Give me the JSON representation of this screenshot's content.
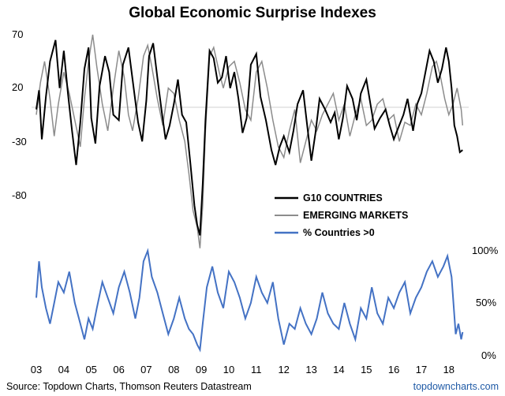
{
  "chart_data": {
    "type": "line",
    "title": "Global Economic Surprise Indexes",
    "top_panel": {
      "y_ticks": [
        70,
        20,
        -30,
        -80
      ],
      "ylim": [
        -125,
        78
      ],
      "reference_line": 0,
      "series": [
        {
          "name": "G10 COUNTRIES",
          "color": "#000000",
          "x": [
            2003.0,
            2003.1,
            2003.2,
            2003.35,
            2003.5,
            2003.7,
            2003.85,
            2004.0,
            2004.15,
            2004.3,
            2004.45,
            2004.6,
            2004.75,
            2004.9,
            2005.0,
            2005.15,
            2005.3,
            2005.5,
            2005.65,
            2005.8,
            2006.0,
            2006.15,
            2006.35,
            2006.5,
            2006.7,
            2006.85,
            2007.0,
            2007.1,
            2007.25,
            2007.4,
            2007.55,
            2007.7,
            2007.85,
            2008.0,
            2008.15,
            2008.3,
            2008.45,
            2008.6,
            2008.75,
            2008.85,
            2008.95,
            2009.05,
            2009.15,
            2009.3,
            2009.45,
            2009.6,
            2009.75,
            2009.9,
            2010.05,
            2010.2,
            2010.35,
            2010.5,
            2010.65,
            2010.8,
            2011.0,
            2011.15,
            2011.35,
            2011.55,
            2011.7,
            2011.85,
            2012.0,
            2012.2,
            2012.35,
            2012.5,
            2012.7,
            2012.85,
            2013.0,
            2013.15,
            2013.3,
            2013.5,
            2013.7,
            2013.85,
            2014.0,
            2014.15,
            2014.3,
            2014.5,
            2014.65,
            2014.8,
            2015.0,
            2015.15,
            2015.3,
            2015.5,
            2015.7,
            2015.85,
            2016.0,
            2016.15,
            2016.35,
            2016.5,
            2016.7,
            2016.85,
            2017.0,
            2017.15,
            2017.3,
            2017.45,
            2017.6,
            2017.75,
            2017.9,
            2018.0,
            2018.1,
            2018.2,
            2018.3,
            2018.4,
            2018.5
          ],
          "values": [
            0,
            18,
            -28,
            12,
            45,
            65,
            20,
            55,
            15,
            -20,
            -52,
            -12,
            38,
            58,
            -8,
            -32,
            22,
            50,
            35,
            -5,
            -10,
            42,
            58,
            28,
            -12,
            -30,
            8,
            50,
            62,
            30,
            0,
            -28,
            -15,
            5,
            28,
            -5,
            -12,
            -50,
            -90,
            -108,
            -118,
            -70,
            -10,
            55,
            48,
            25,
            30,
            50,
            20,
            35,
            10,
            -22,
            -8,
            42,
            52,
            12,
            -10,
            -38,
            -52,
            -35,
            -25,
            -40,
            -20,
            5,
            18,
            -15,
            -48,
            -22,
            10,
            0,
            -12,
            -3,
            -28,
            -8,
            22,
            10,
            -10,
            15,
            28,
            5,
            -18,
            -8,
            0,
            -15,
            -28,
            -18,
            -5,
            10,
            -20,
            5,
            15,
            35,
            55,
            45,
            25,
            38,
            58,
            45,
            20,
            -15,
            -25,
            -40,
            -38
          ]
        },
        {
          "name": "EMERGING MARKETS",
          "color": "#8c8c8c",
          "x": [
            2003.0,
            2003.15,
            2003.3,
            2003.5,
            2003.65,
            2003.8,
            2004.0,
            2004.2,
            2004.4,
            2004.6,
            2004.75,
            2004.9,
            2005.05,
            2005.2,
            2005.4,
            2005.6,
            2005.8,
            2006.0,
            2006.2,
            2006.35,
            2006.5,
            2006.7,
            2006.9,
            2007.05,
            2007.2,
            2007.4,
            2007.6,
            2007.8,
            2008.0,
            2008.2,
            2008.4,
            2008.55,
            2008.7,
            2008.85,
            2008.95,
            2009.05,
            2009.15,
            2009.3,
            2009.45,
            2009.65,
            2009.8,
            2010.0,
            2010.2,
            2010.4,
            2010.6,
            2010.8,
            2011.0,
            2011.2,
            2011.4,
            2011.6,
            2011.8,
            2012.0,
            2012.2,
            2012.4,
            2012.6,
            2012.8,
            2013.0,
            2013.2,
            2013.4,
            2013.6,
            2013.8,
            2014.0,
            2014.2,
            2014.4,
            2014.6,
            2014.8,
            2015.0,
            2015.2,
            2015.4,
            2015.6,
            2015.8,
            2016.0,
            2016.2,
            2016.4,
            2016.6,
            2016.8,
            2017.0,
            2017.2,
            2017.4,
            2017.55,
            2017.7,
            2017.85,
            2018.0,
            2018.15,
            2018.3,
            2018.45,
            2018.5
          ],
          "values": [
            -5,
            25,
            45,
            10,
            -25,
            5,
            35,
            15,
            -10,
            -35,
            10,
            45,
            70,
            40,
            5,
            -20,
            20,
            55,
            30,
            -5,
            -20,
            10,
            50,
            60,
            40,
            10,
            -15,
            20,
            15,
            -10,
            -30,
            -60,
            -95,
            -110,
            -130,
            -90,
            -20,
            50,
            58,
            35,
            20,
            40,
            45,
            25,
            0,
            -10,
            35,
            45,
            20,
            -10,
            -35,
            -45,
            -20,
            0,
            -50,
            -30,
            -10,
            -20,
            -5,
            5,
            15,
            -10,
            5,
            -25,
            -5,
            10,
            -15,
            -10,
            5,
            10,
            -10,
            -5,
            -30,
            -12,
            -15,
            5,
            -5,
            15,
            40,
            45,
            30,
            10,
            -5,
            5,
            20,
            0,
            -15
          ]
        }
      ]
    },
    "bottom_panel": {
      "y_ticks": [
        "100%",
        "50%",
        "0%"
      ],
      "ylim": [
        0,
        100
      ],
      "series": [
        {
          "name": "% Countries >0",
          "color": "#4472c4",
          "x": [
            2003.0,
            2003.1,
            2003.2,
            2003.35,
            2003.5,
            2003.65,
            2003.8,
            2004.0,
            2004.2,
            2004.4,
            2004.6,
            2004.75,
            2004.9,
            2005.05,
            2005.2,
            2005.4,
            2005.6,
            2005.8,
            2006.0,
            2006.2,
            2006.4,
            2006.6,
            2006.75,
            2006.9,
            2007.05,
            2007.2,
            2007.4,
            2007.6,
            2007.8,
            2008.0,
            2008.2,
            2008.4,
            2008.55,
            2008.7,
            2008.85,
            2008.95,
            2009.05,
            2009.2,
            2009.4,
            2009.6,
            2009.8,
            2010.0,
            2010.2,
            2010.4,
            2010.6,
            2010.8,
            2011.0,
            2011.2,
            2011.4,
            2011.6,
            2011.8,
            2012.0,
            2012.2,
            2012.4,
            2012.6,
            2012.8,
            2013.0,
            2013.2,
            2013.4,
            2013.6,
            2013.8,
            2014.0,
            2014.2,
            2014.4,
            2014.6,
            2014.8,
            2015.0,
            2015.2,
            2015.4,
            2015.6,
            2015.8,
            2016.0,
            2016.2,
            2016.4,
            2016.6,
            2016.8,
            2017.0,
            2017.2,
            2017.4,
            2017.6,
            2017.8,
            2017.95,
            2018.1,
            2018.25,
            2018.35,
            2018.45,
            2018.5
          ],
          "values": [
            55,
            90,
            65,
            45,
            30,
            50,
            70,
            60,
            80,
            50,
            30,
            15,
            35,
            25,
            45,
            70,
            55,
            40,
            65,
            80,
            60,
            35,
            55,
            90,
            100,
            75,
            60,
            40,
            20,
            35,
            55,
            35,
            25,
            20,
            10,
            5,
            30,
            65,
            85,
            60,
            45,
            80,
            70,
            55,
            35,
            50,
            75,
            60,
            50,
            70,
            35,
            10,
            30,
            25,
            45,
            30,
            20,
            35,
            60,
            40,
            30,
            25,
            50,
            30,
            15,
            45,
            35,
            65,
            40,
            30,
            55,
            45,
            60,
            70,
            40,
            55,
            65,
            80,
            90,
            75,
            85,
            95,
            75,
            20,
            30,
            15,
            22
          ]
        }
      ]
    },
    "x_ticks": [
      "03",
      "04",
      "05",
      "06",
      "07",
      "08",
      "09",
      "10",
      "11",
      "12",
      "13",
      "14",
      "15",
      "16",
      "17",
      "18"
    ],
    "legend": [
      "G10 COUNTRIES",
      "EMERGING MARKETS",
      "% Countries >0"
    ],
    "source": "Source: Topdown Charts, Thomson Reuters Datastream",
    "brand": "topdowncharts.com"
  }
}
